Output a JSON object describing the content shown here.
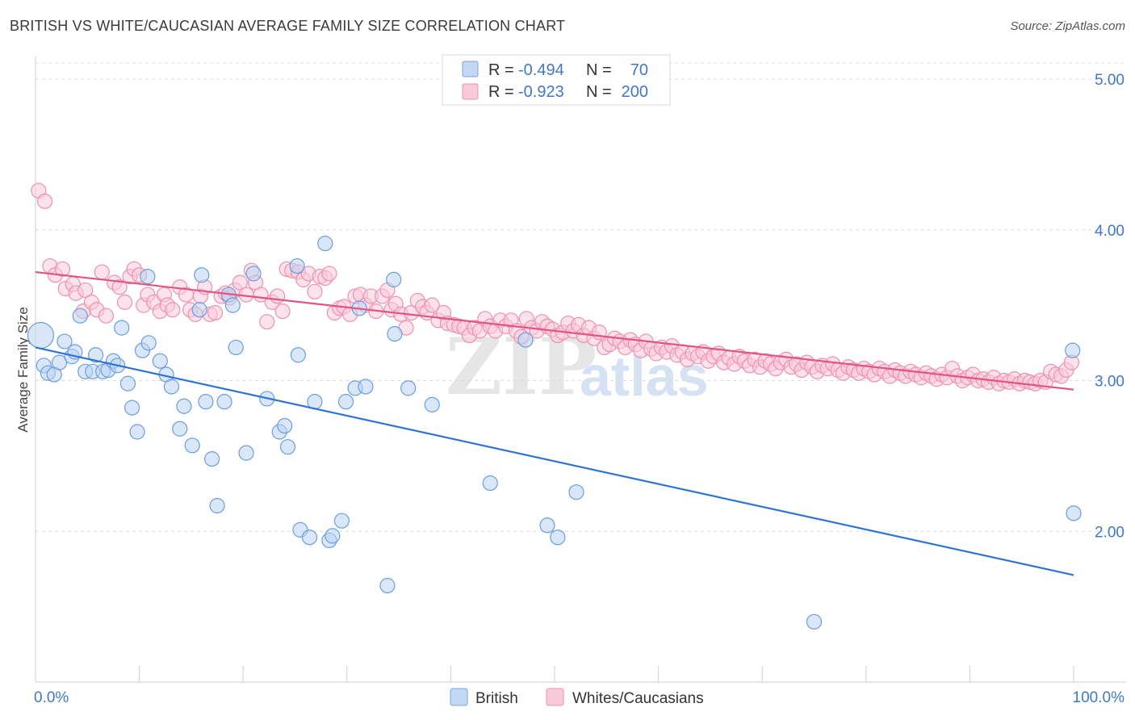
{
  "title": "BRITISH VS WHITE/CAUCASIAN AVERAGE FAMILY SIZE CORRELATION CHART",
  "source": "Source: ZipAtlas.com",
  "watermark": {
    "zip": "ZIP",
    "atlas": "atlas"
  },
  "legend": {
    "rows": [
      {
        "r_label": "R = ",
        "r_value": "-0.494",
        "n_label": "N = ",
        "n_value": "70",
        "color": "#aac8f0"
      },
      {
        "r_label": "R = ",
        "r_value": "-0.923",
        "n_label": "N = ",
        "n_value": "200",
        "color": "#f5b8cc"
      }
    ]
  },
  "chart_data": {
    "type": "scatter",
    "title": "BRITISH VS WHITE/CAUCASIAN AVERAGE FAMILY SIZE CORRELATION CHART",
    "xlabel": "",
    "ylabel": "Average Family Size",
    "xlim": [
      0,
      100
    ],
    "ylim": [
      1.0,
      5.15
    ],
    "x_tick_labels": [
      "0.0%",
      "100.0%"
    ],
    "y_ticks": [
      2.0,
      3.0,
      4.0,
      5.0
    ],
    "y_tick_labels": [
      "2.00",
      "3.00",
      "4.00",
      "5.00"
    ],
    "grid": true,
    "legend_position": "top-center",
    "series": [
      {
        "name": "British",
        "color": "#6b9de0",
        "fill": "#b9d3f3",
        "trend": {
          "x": [
            0,
            100
          ],
          "y": [
            3.22,
            1.71
          ],
          "color": "#2f74d0"
        },
        "points": [
          [
            0.5,
            3.3
          ],
          [
            0.8,
            3.1
          ],
          [
            1.2,
            3.05
          ],
          [
            1.8,
            3.04
          ],
          [
            2.3,
            3.12
          ],
          [
            2.8,
            3.26
          ],
          [
            3.5,
            3.16
          ],
          [
            3.8,
            3.19
          ],
          [
            4.3,
            3.43
          ],
          [
            4.8,
            3.06
          ],
          [
            5.5,
            3.06
          ],
          [
            5.8,
            3.17
          ],
          [
            6.5,
            3.06
          ],
          [
            7.0,
            3.07
          ],
          [
            7.5,
            3.13
          ],
          [
            7.9,
            3.1
          ],
          [
            8.3,
            3.35
          ],
          [
            8.9,
            2.98
          ],
          [
            9.3,
            2.82
          ],
          [
            9.8,
            2.66
          ],
          [
            10.3,
            3.2
          ],
          [
            10.9,
            3.25
          ],
          [
            10.8,
            3.69
          ],
          [
            12.0,
            3.13
          ],
          [
            12.6,
            3.04
          ],
          [
            13.1,
            2.96
          ],
          [
            13.9,
            2.68
          ],
          [
            14.3,
            2.83
          ],
          [
            15.1,
            2.57
          ],
          [
            15.8,
            3.47
          ],
          [
            16.0,
            3.7
          ],
          [
            16.4,
            2.86
          ],
          [
            17.0,
            2.48
          ],
          [
            17.5,
            2.17
          ],
          [
            18.2,
            2.86
          ],
          [
            18.6,
            3.57
          ],
          [
            19.0,
            3.5
          ],
          [
            19.3,
            3.22
          ],
          [
            20.3,
            2.52
          ],
          [
            21.0,
            3.71
          ],
          [
            22.3,
            2.88
          ],
          [
            23.5,
            2.66
          ],
          [
            24.0,
            2.7
          ],
          [
            24.3,
            2.56
          ],
          [
            25.2,
            3.76
          ],
          [
            25.3,
            3.17
          ],
          [
            25.5,
            2.01
          ],
          [
            26.4,
            1.96
          ],
          [
            26.9,
            2.86
          ],
          [
            28.3,
            1.94
          ],
          [
            27.9,
            3.91
          ],
          [
            28.6,
            1.97
          ],
          [
            29.5,
            2.07
          ],
          [
            29.9,
            2.86
          ],
          [
            30.8,
            2.95
          ],
          [
            31.2,
            3.48
          ],
          [
            31.8,
            2.96
          ],
          [
            33.9,
            1.64
          ],
          [
            34.5,
            3.67
          ],
          [
            34.6,
            3.31
          ],
          [
            35.9,
            2.95
          ],
          [
            38.2,
            2.84
          ],
          [
            43.8,
            2.32
          ],
          [
            47.2,
            3.27
          ],
          [
            49.3,
            2.04
          ],
          [
            50.3,
            1.96
          ],
          [
            52.1,
            2.26
          ],
          [
            75.0,
            1.4
          ],
          [
            100.0,
            2.12
          ],
          [
            99.9,
            3.2
          ]
        ]
      },
      {
        "name": "Whites/Caucasians",
        "color": "#ee90ae",
        "fill": "#f9cad9",
        "trend": {
          "x": [
            0,
            100
          ],
          "y": [
            3.72,
            2.94
          ],
          "color": "#e05585"
        },
        "points": [
          [
            0.3,
            4.26
          ],
          [
            0.9,
            4.19
          ],
          [
            1.4,
            3.76
          ],
          [
            1.9,
            3.7
          ],
          [
            2.6,
            3.74
          ],
          [
            2.9,
            3.61
          ],
          [
            3.6,
            3.64
          ],
          [
            3.9,
            3.58
          ],
          [
            4.6,
            3.46
          ],
          [
            4.8,
            3.6
          ],
          [
            5.4,
            3.52
          ],
          [
            5.9,
            3.47
          ],
          [
            6.4,
            3.72
          ],
          [
            6.8,
            3.43
          ],
          [
            7.6,
            3.65
          ],
          [
            8.1,
            3.62
          ],
          [
            8.6,
            3.52
          ],
          [
            9.1,
            3.69
          ],
          [
            9.5,
            3.74
          ],
          [
            10.0,
            3.7
          ],
          [
            10.4,
            3.5
          ],
          [
            10.8,
            3.57
          ],
          [
            11.4,
            3.52
          ],
          [
            12.0,
            3.46
          ],
          [
            12.4,
            3.57
          ],
          [
            12.7,
            3.5
          ],
          [
            13.2,
            3.47
          ],
          [
            13.9,
            3.62
          ],
          [
            14.5,
            3.57
          ],
          [
            14.9,
            3.47
          ],
          [
            15.4,
            3.44
          ],
          [
            15.9,
            3.56
          ],
          [
            16.3,
            3.62
          ],
          [
            16.8,
            3.44
          ],
          [
            17.3,
            3.45
          ],
          [
            17.9,
            3.56
          ],
          [
            18.3,
            3.58
          ],
          [
            18.7,
            3.55
          ],
          [
            19.2,
            3.6
          ],
          [
            19.7,
            3.65
          ],
          [
            20.3,
            3.57
          ],
          [
            20.8,
            3.73
          ],
          [
            21.2,
            3.65
          ],
          [
            21.7,
            3.57
          ],
          [
            22.3,
            3.39
          ],
          [
            22.8,
            3.52
          ],
          [
            23.3,
            3.56
          ],
          [
            23.8,
            3.46
          ],
          [
            24.2,
            3.74
          ],
          [
            24.7,
            3.73
          ],
          [
            25.3,
            3.72
          ],
          [
            25.8,
            3.67
          ],
          [
            26.3,
            3.71
          ],
          [
            26.9,
            3.59
          ],
          [
            27.4,
            3.69
          ],
          [
            27.9,
            3.68
          ],
          [
            28.3,
            3.71
          ],
          [
            28.8,
            3.45
          ],
          [
            29.3,
            3.48
          ],
          [
            29.7,
            3.49
          ],
          [
            30.3,
            3.44
          ],
          [
            30.8,
            3.56
          ],
          [
            31.3,
            3.57
          ],
          [
            31.8,
            3.5
          ],
          [
            32.3,
            3.56
          ],
          [
            32.8,
            3.46
          ],
          [
            33.4,
            3.56
          ],
          [
            33.9,
            3.6
          ],
          [
            34.3,
            3.47
          ],
          [
            34.7,
            3.51
          ],
          [
            35.2,
            3.44
          ],
          [
            35.7,
            3.35
          ],
          [
            36.2,
            3.45
          ],
          [
            36.8,
            3.53
          ],
          [
            37.3,
            3.49
          ],
          [
            37.7,
            3.45
          ],
          [
            38.2,
            3.5
          ],
          [
            38.8,
            3.4
          ],
          [
            39.3,
            3.45
          ],
          [
            39.7,
            3.38
          ],
          [
            40.3,
            3.37
          ],
          [
            40.8,
            3.36
          ],
          [
            41.3,
            3.35
          ],
          [
            41.8,
            3.3
          ],
          [
            42.3,
            3.35
          ],
          [
            42.8,
            3.33
          ],
          [
            43.3,
            3.41
          ],
          [
            43.8,
            3.36
          ],
          [
            44.3,
            3.33
          ],
          [
            44.8,
            3.4
          ],
          [
            45.3,
            3.36
          ],
          [
            45.8,
            3.4
          ],
          [
            46.3,
            3.33
          ],
          [
            46.8,
            3.29
          ],
          [
            47.3,
            3.41
          ],
          [
            47.8,
            3.35
          ],
          [
            48.3,
            3.33
          ],
          [
            48.8,
            3.39
          ],
          [
            49.3,
            3.36
          ],
          [
            49.8,
            3.34
          ],
          [
            50.3,
            3.3
          ],
          [
            50.8,
            3.32
          ],
          [
            51.3,
            3.38
          ],
          [
            51.8,
            3.33
          ],
          [
            52.3,
            3.37
          ],
          [
            52.8,
            3.3
          ],
          [
            53.3,
            3.35
          ],
          [
            53.8,
            3.28
          ],
          [
            54.3,
            3.32
          ],
          [
            54.8,
            3.22
          ],
          [
            55.3,
            3.24
          ],
          [
            55.8,
            3.28
          ],
          [
            56.3,
            3.26
          ],
          [
            56.8,
            3.22
          ],
          [
            57.3,
            3.27
          ],
          [
            57.8,
            3.24
          ],
          [
            58.3,
            3.2
          ],
          [
            58.8,
            3.26
          ],
          [
            59.3,
            3.21
          ],
          [
            59.8,
            3.18
          ],
          [
            60.3,
            3.22
          ],
          [
            60.8,
            3.19
          ],
          [
            61.3,
            3.23
          ],
          [
            61.8,
            3.17
          ],
          [
            62.3,
            3.19
          ],
          [
            62.8,
            3.14
          ],
          [
            63.3,
            3.18
          ],
          [
            63.8,
            3.16
          ],
          [
            64.3,
            3.19
          ],
          [
            64.8,
            3.13
          ],
          [
            65.3,
            3.16
          ],
          [
            65.8,
            3.18
          ],
          [
            66.3,
            3.12
          ],
          [
            66.8,
            3.15
          ],
          [
            67.3,
            3.11
          ],
          [
            67.8,
            3.16
          ],
          [
            68.3,
            3.13
          ],
          [
            68.8,
            3.1
          ],
          [
            69.3,
            3.14
          ],
          [
            69.8,
            3.09
          ],
          [
            70.3,
            3.13
          ],
          [
            70.8,
            3.11
          ],
          [
            71.3,
            3.08
          ],
          [
            71.8,
            3.12
          ],
          [
            72.3,
            3.14
          ],
          [
            72.8,
            3.09
          ],
          [
            73.3,
            3.11
          ],
          [
            73.8,
            3.07
          ],
          [
            74.3,
            3.12
          ],
          [
            74.8,
            3.09
          ],
          [
            75.3,
            3.06
          ],
          [
            75.8,
            3.1
          ],
          [
            76.3,
            3.08
          ],
          [
            76.8,
            3.11
          ],
          [
            77.3,
            3.07
          ],
          [
            77.8,
            3.05
          ],
          [
            78.3,
            3.09
          ],
          [
            78.8,
            3.07
          ],
          [
            79.3,
            3.05
          ],
          [
            79.8,
            3.08
          ],
          [
            80.3,
            3.06
          ],
          [
            80.8,
            3.04
          ],
          [
            81.3,
            3.08
          ],
          [
            81.8,
            3.06
          ],
          [
            82.3,
            3.03
          ],
          [
            82.8,
            3.07
          ],
          [
            83.3,
            3.05
          ],
          [
            83.8,
            3.03
          ],
          [
            84.3,
            3.06
          ],
          [
            84.8,
            3.04
          ],
          [
            85.3,
            3.02
          ],
          [
            85.8,
            3.05
          ],
          [
            86.3,
            3.03
          ],
          [
            86.8,
            3.01
          ],
          [
            87.3,
            3.04
          ],
          [
            87.8,
            3.02
          ],
          [
            88.3,
            3.08
          ],
          [
            88.8,
            3.03
          ],
          [
            89.3,
            3.0
          ],
          [
            89.8,
            3.02
          ],
          [
            90.3,
            3.04
          ],
          [
            90.8,
            3.0
          ],
          [
            91.3,
            3.01
          ],
          [
            91.8,
            2.99
          ],
          [
            92.3,
            3.02
          ],
          [
            92.8,
            2.98
          ],
          [
            93.3,
            3.0
          ],
          [
            93.8,
            2.99
          ],
          [
            94.3,
            3.01
          ],
          [
            94.8,
            2.98
          ],
          [
            95.3,
            3.0
          ],
          [
            95.8,
            2.99
          ],
          [
            96.3,
            2.98
          ],
          [
            96.8,
            3.0
          ],
          [
            97.3,
            2.99
          ],
          [
            97.8,
            3.06
          ],
          [
            98.3,
            3.04
          ],
          [
            98.8,
            3.03
          ],
          [
            99.3,
            3.07
          ],
          [
            99.8,
            3.12
          ]
        ]
      }
    ]
  }
}
